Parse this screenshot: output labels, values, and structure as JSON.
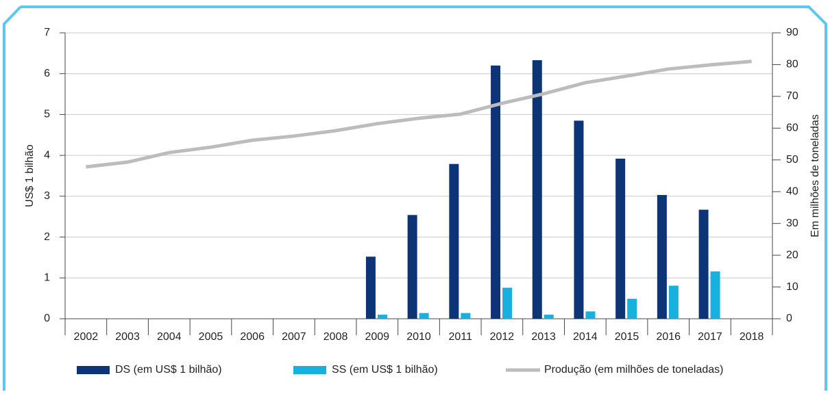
{
  "chart_data": {
    "type": "bar",
    "categories": [
      "2002",
      "2003",
      "2004",
      "2005",
      "2006",
      "2007",
      "2008",
      "2009",
      "2010",
      "2011",
      "2012",
      "2013",
      "2014",
      "2015",
      "2016",
      "2017",
      "2018"
    ],
    "series": [
      {
        "name": "DS (em US$ 1 bilhão)",
        "color": "#0e3478",
        "values": [
          null,
          null,
          null,
          null,
          null,
          null,
          null,
          1.52,
          2.54,
          3.79,
          6.2,
          6.33,
          4.85,
          3.92,
          3.03,
          2.67,
          null
        ]
      },
      {
        "name": "SS (em US$ 1 bilhão)",
        "color": "#17b1e0",
        "values": [
          null,
          null,
          null,
          null,
          null,
          null,
          null,
          0.1,
          0.14,
          0.14,
          0.76,
          0.1,
          0.18,
          0.49,
          0.81,
          1.16,
          null
        ]
      },
      {
        "name": "Produção (em milhões de toneladas)",
        "color": "#bcbcbc",
        "type": "line",
        "axis": "y2",
        "values": [
          47.8,
          49.3,
          52.3,
          54,
          56.2,
          57.5,
          59.2,
          61.4,
          63.1,
          64.4,
          67.8,
          70.8,
          74.3,
          76.4,
          78.6,
          79.9,
          81
        ]
      }
    ],
    "ylabel": "US$ 1 bilhão",
    "y2label": "Em milhões de toneladas",
    "ylim": [
      0,
      7
    ],
    "yticks": [
      0,
      1,
      2,
      3,
      4,
      5,
      6,
      7
    ],
    "y2lim": [
      0,
      90
    ],
    "y2ticks": [
      0,
      10,
      20,
      30,
      40,
      50,
      60,
      70,
      80,
      90
    ],
    "grid": true,
    "legend": "bottom"
  }
}
